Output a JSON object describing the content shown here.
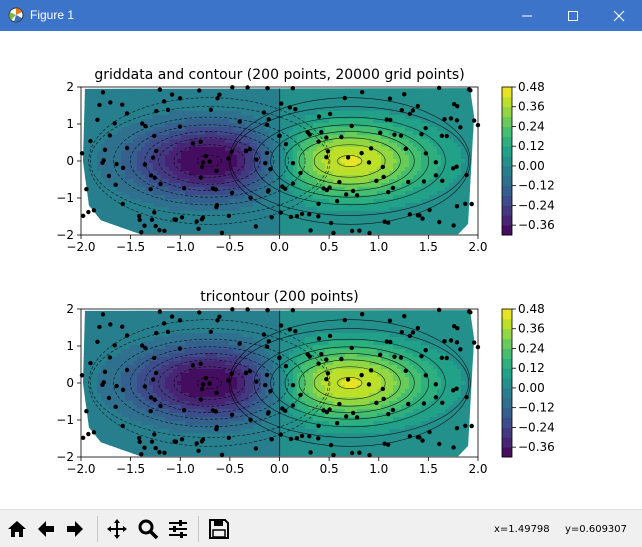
{
  "window": {
    "title": "Figure 1"
  },
  "toolbar": {
    "buttons": [
      {
        "name": "home-button",
        "icon": "home-icon"
      },
      {
        "name": "back-button",
        "icon": "arrow-left-icon"
      },
      {
        "name": "forward-button",
        "icon": "arrow-right-icon"
      },
      {
        "name": "pan-button",
        "icon": "move-icon"
      },
      {
        "name": "zoom-button",
        "icon": "magnifier-icon"
      },
      {
        "name": "configure-subplots-button",
        "icon": "sliders-icon"
      },
      {
        "name": "save-button",
        "icon": "floppy-disk-icon"
      }
    ],
    "x_readout": "x=1.49798",
    "y_readout": "y=0.609307"
  },
  "chart_data": [
    {
      "type": "contour",
      "title": "griddata and contour (200 points, 20000 grid points)",
      "xlabel": "",
      "ylabel": "",
      "xlim": [
        -2,
        2
      ],
      "ylim": [
        -2,
        2
      ],
      "xticks": [
        "−2.0",
        "−1.5",
        "−1.0",
        "−0.5",
        "0.0",
        "0.5",
        "1.0",
        "1.5",
        "2.0"
      ],
      "yticks": [
        "−2",
        "−1",
        "0",
        "1",
        "2"
      ],
      "colorbar_ticks": [
        "0.48",
        "0.36",
        "0.24",
        "0.12",
        "0.00",
        "−0.12",
        "−0.24",
        "−0.36"
      ],
      "colorbar_range": [
        -0.42,
        0.48
      ],
      "function": "x*exp(-x^2-y^2)",
      "colormap": [
        "#440154",
        "#482878",
        "#3e4989",
        "#31688e",
        "#26828e",
        "#1f9e89",
        "#35b779",
        "#6ece58",
        "#b5de2b",
        "#fde725"
      ],
      "n_points": 200
    },
    {
      "type": "tricontour",
      "title": "tricontour (200 points)",
      "xlabel": "",
      "ylabel": "",
      "xlim": [
        -2,
        2
      ],
      "ylim": [
        -2,
        2
      ],
      "xticks": [
        "−2.0",
        "−1.5",
        "−1.0",
        "−0.5",
        "0.0",
        "0.5",
        "1.0",
        "1.5",
        "2.0"
      ],
      "yticks": [
        "−2",
        "−1",
        "0",
        "1",
        "2"
      ],
      "colorbar_ticks": [
        "0.48",
        "0.36",
        "0.24",
        "0.12",
        "0.00",
        "−0.12",
        "−0.24",
        "−0.36"
      ],
      "colorbar_range": [
        -0.42,
        0.48
      ],
      "function": "x*exp(-x^2-y^2)",
      "colormap": [
        "#440154",
        "#482878",
        "#3e4989",
        "#31688e",
        "#26828e",
        "#1f9e89",
        "#35b779",
        "#6ece58",
        "#b5de2b",
        "#fde725"
      ],
      "n_points": 200
    }
  ]
}
